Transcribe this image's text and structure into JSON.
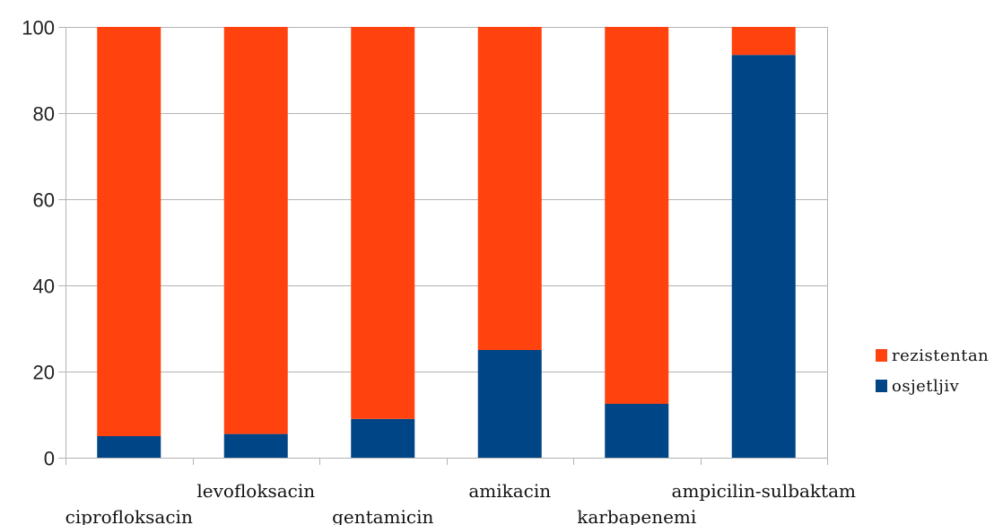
{
  "chart_data": {
    "type": "bar",
    "stacked": true,
    "categories": [
      "ciprofloksacin",
      "levofloksacin",
      "gentamicin",
      "amikacin",
      "karbapenemi",
      "ampicilin-sulbaktam"
    ],
    "series": [
      {
        "name": "osjetljiv",
        "color": "#004586",
        "values": [
          5,
          5.5,
          9,
          25,
          12.5,
          93.5
        ]
      },
      {
        "name": "rezistentan",
        "color": "#ff420e",
        "values": [
          95,
          94.5,
          91,
          75,
          87.5,
          6.5
        ]
      }
    ],
    "ylim": [
      0,
      100
    ],
    "yticks": [
      0,
      20,
      40,
      60,
      80,
      100
    ],
    "grid": true,
    "legend_position": "right",
    "legend_order": [
      "rezistentan",
      "osjetljiv"
    ],
    "title": "",
    "xlabel": "",
    "ylabel": ""
  }
}
